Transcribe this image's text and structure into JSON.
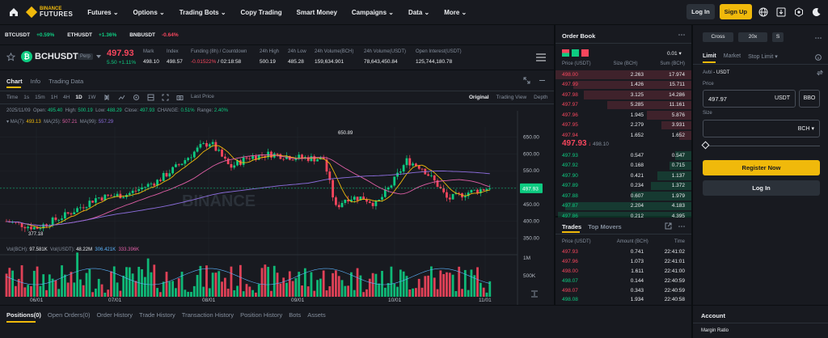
{
  "nav": {
    "logo_top": "BINANCE",
    "logo_bottom": "FUTURES",
    "items": [
      "Futures",
      "Options",
      "Trading Bots",
      "Copy Trading",
      "Smart Money",
      "Campaigns",
      "Data",
      "More"
    ],
    "login": "Log In",
    "signup": "Sign Up"
  },
  "ticker": [
    {
      "sym": "BTCUSDT",
      "chg": "+0.59%",
      "up": true
    },
    {
      "sym": "ETHUSDT",
      "chg": "+1.36%",
      "up": true
    },
    {
      "sym": "BNBUSDT",
      "chg": "-0.64%",
      "up": false
    }
  ],
  "symbol": {
    "name": "BCHUSDT",
    "tag": "Perp",
    "price": "497.93",
    "change": "5.50",
    "change_pct": "+1.11%",
    "stats": [
      {
        "label": "Mark",
        "value": "498.10"
      },
      {
        "label": "Index",
        "value": "498.57"
      },
      {
        "label": "Funding (8h) / Countdown",
        "value": "-0.01522%",
        "value2": "/ 02:18:58"
      },
      {
        "label": "24h High",
        "value": "500.19"
      },
      {
        "label": "24h Low",
        "value": "485.28"
      },
      {
        "label": "24h Volume(BCH)",
        "value": "159,634.901"
      },
      {
        "label": "24h Volume(USDT)",
        "value": "78,643,450.84"
      },
      {
        "label": "Open Interest(USDT)",
        "value": "125,744,180.78"
      }
    ]
  },
  "chart": {
    "tabs": [
      "Chart",
      "Info",
      "Trading Data"
    ],
    "intervals": [
      "Time",
      "1s",
      "15m",
      "1H",
      "4H",
      "1D",
      "1W"
    ],
    "active_interval": "1D",
    "last_price": "Last Price",
    "views": [
      "Original",
      "Trading View",
      "Depth"
    ],
    "ohlc": {
      "date": "2025/11/09",
      "open_label": "Open:",
      "open": "495.40",
      "high_label": "High:",
      "high": "500.19",
      "low_label": "Low:",
      "low": "488.29",
      "close_label": "Close:",
      "close": "497.93",
      "change_label": "CHANGE:",
      "change": "0.51%",
      "range_label": "Range:",
      "range": "2.40%"
    },
    "ma": {
      "label": "MA(7):",
      "ma7": "493.13",
      "ma25_label": "MA(25):",
      "ma25": "507.21",
      "ma99_label": "MA(99):",
      "ma99": "557.29"
    },
    "vol": {
      "label": "Vol(BCH):",
      "value": "97.581K",
      "usdt_label": "Vol(USDT):",
      "usdt": "48.22M",
      "a": "306.421K",
      "b": "333.396K"
    },
    "y_ticks": [
      "650.00",
      "600.00",
      "550.00",
      "500.00",
      "450.00",
      "400.00",
      "350.00"
    ],
    "vol_ticks": [
      "1M",
      "500K"
    ],
    "x_ticks": [
      "06/01",
      "07/01",
      "08/01",
      "09/01",
      "10/01",
      "11/01"
    ],
    "hi_label": "650.89",
    "lo_label": "377.18",
    "price_tag": "497.93",
    "watermark": "BINANCE"
  },
  "chart_data": {
    "type": "candlestick",
    "y_range": [
      320,
      680
    ],
    "markers": {
      "high": 650.89,
      "low": 377.18
    }
  },
  "orderbook": {
    "title": "Order Book",
    "step": "0.01",
    "headers": [
      "Price (USDT)",
      "Size (BCH)",
      "Sum (BCH)"
    ],
    "asks": [
      [
        "498.00",
        "2.263",
        "17.974"
      ],
      [
        "497.99",
        "1.426",
        "15.711"
      ],
      [
        "497.98",
        "3.125",
        "14.286"
      ],
      [
        "497.97",
        "5.285",
        "11.161"
      ],
      [
        "497.96",
        "1.945",
        "5.876"
      ],
      [
        "497.95",
        "2.279",
        "3.931"
      ],
      [
        "497.94",
        "1.652",
        "1.652"
      ]
    ],
    "mid": "497.93",
    "mid_mark": "498.10",
    "bids": [
      [
        "497.93",
        "0.547",
        "0.547"
      ],
      [
        "497.92",
        "0.168",
        "0.715"
      ],
      [
        "497.90",
        "0.421",
        "1.137"
      ],
      [
        "497.89",
        "0.234",
        "1.372"
      ],
      [
        "497.88",
        "0.607",
        "1.979"
      ],
      [
        "497.87",
        "2.204",
        "4.183"
      ],
      [
        "497.86",
        "0.212",
        "4.395"
      ]
    ]
  },
  "trades": {
    "tabs": [
      "Trades",
      "Top Movers"
    ],
    "headers": [
      "Price (USDT)",
      "Amount (BCH)",
      "Time"
    ],
    "rows": [
      [
        "497.93",
        "0.741",
        "22:41:02",
        "dn"
      ],
      [
        "497.96",
        "1.073",
        "22:41:01",
        "dn"
      ],
      [
        "498.00",
        "1.611",
        "22:41:00",
        "dn"
      ],
      [
        "498.07",
        "0.144",
        "22:40:59",
        "up"
      ],
      [
        "498.07",
        "0.343",
        "22:40:59",
        "dn"
      ],
      [
        "498.08",
        "1.934",
        "22:40:58",
        "up"
      ]
    ]
  },
  "order": {
    "margin": "Cross",
    "leverage": "20x",
    "mode": "S",
    "types": [
      "Limit",
      "Market",
      "Stop Limit"
    ],
    "avbl_label": "Avbl",
    "avbl": "- USDT",
    "price_label": "Price",
    "price": "497.97",
    "price_unit": "USDT",
    "bbo": "BBO",
    "size_label": "Size",
    "size_unit": "BCH",
    "register": "Register Now",
    "login": "Log In"
  },
  "bottom": {
    "tabs": [
      "Positions(0)",
      "Open Orders(0)",
      "Order History",
      "Trade History",
      "Transaction History",
      "Position History",
      "Bots",
      "Assets"
    ]
  },
  "account": {
    "title": "Account",
    "margin_ratio": "Margin Ratio"
  },
  "colors": {
    "up": "#0ecb81",
    "down": "#f6465d",
    "brand": "#f0b90b",
    "bg": "#0b0e11",
    "panel": "#181a20"
  }
}
